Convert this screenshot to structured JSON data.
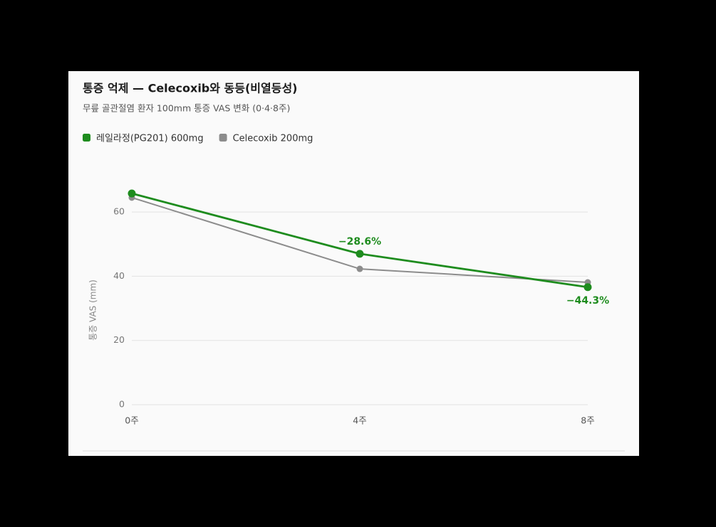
{
  "chart_data": {
    "type": "line",
    "title": "통증 억제 — Celecoxib와 동등(비열등성)",
    "subtitle": "무릎 골관절염 환자 100mm 통증 VAS 변화 (0·4·8주)",
    "y_label": "통증 VAS (mm)",
    "categories": [
      "0주",
      "4주",
      "8주"
    ],
    "series": [
      {
        "name": "레일라정(PG201) 600mg",
        "color": "#1e8c1e",
        "values": [
          65.8,
          47.0,
          36.6
        ]
      },
      {
        "name": "Celecoxib 200mg",
        "color": "#8c8c8c",
        "values": [
          64.5,
          42.3,
          38.1
        ]
      }
    ],
    "annotations": [
      {
        "text": "−28.6%",
        "at": "4주"
      },
      {
        "text": "−44.3%",
        "at": "8주"
      }
    ],
    "ylim": [
      0,
      70
    ],
    "yticks": [
      0,
      20,
      40,
      60
    ],
    "grid": true
  }
}
